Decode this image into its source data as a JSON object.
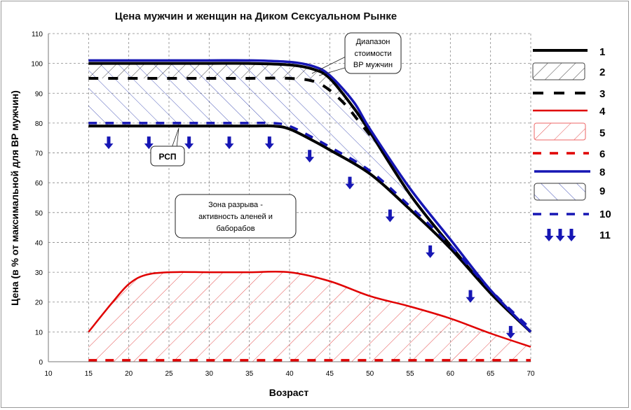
{
  "chart_data": {
    "type": "line",
    "title": "Цена мужчин и женщин на Диком Сексуальном  Рынке",
    "xlabel": "Возраст",
    "ylabel": "Цена (в % от максимальной для ВР мужчин)",
    "xlim": [
      10,
      70
    ],
    "ylim": [
      0,
      110
    ],
    "xticks": [
      10,
      15,
      20,
      25,
      30,
      35,
      40,
      45,
      50,
      55,
      60,
      65,
      70
    ],
    "yticks": [
      0,
      10,
      20,
      30,
      40,
      50,
      60,
      70,
      80,
      90,
      100,
      110
    ],
    "grid": true,
    "legend_position": "right",
    "series": [
      {
        "name": "1",
        "style": "solid",
        "color": "#000000",
        "x": [
          15,
          20,
          25,
          30,
          35,
          40,
          43,
          45,
          48,
          50,
          55,
          60,
          65,
          70
        ],
        "y": [
          100,
          100,
          100,
          100,
          100,
          99.5,
          98,
          95,
          85,
          77,
          56,
          39,
          23,
          10
        ]
      },
      {
        "name": "3",
        "style": "dashed",
        "color": "#000000",
        "x": [
          15,
          20,
          25,
          30,
          35,
          40,
          43,
          45,
          47,
          48.5,
          50
        ],
        "y": [
          95,
          95,
          95,
          95,
          95,
          95,
          94,
          91,
          86,
          81,
          76
        ]
      },
      {
        "name": "1",
        "style": "solid",
        "color": "#000000",
        "x": [
          15,
          20,
          25,
          30,
          35,
          38,
          40,
          43,
          45,
          50,
          55,
          60,
          65,
          70
        ],
        "y": [
          79,
          79,
          79,
          79,
          79,
          79,
          78,
          74,
          71,
          63,
          51,
          38,
          23,
          10
        ]
      },
      {
        "name": "10",
        "style": "dashed",
        "color": "#1616b4",
        "x": [
          15,
          20,
          25,
          30,
          35,
          38,
          40,
          43,
          45,
          50,
          55,
          60,
          65,
          70
        ],
        "y": [
          80,
          80,
          80,
          80,
          80,
          80,
          79,
          75,
          72,
          64,
          52,
          39,
          24,
          11
        ]
      },
      {
        "name": "8",
        "style": "solid",
        "color": "#1616b4",
        "x": [
          15,
          20,
          25,
          30,
          35,
          40,
          43,
          45,
          48,
          50,
          55,
          60,
          65,
          70
        ],
        "y": [
          101,
          101,
          101,
          101,
          101,
          100.5,
          99,
          96,
          87,
          78,
          58,
          41,
          24,
          10
        ]
      },
      {
        "name": "4",
        "style": "solid",
        "color": "#e00000",
        "x": [
          15,
          18,
          20,
          22,
          25,
          30,
          35,
          40,
          45,
          50,
          55,
          60,
          65,
          70
        ],
        "y": [
          10,
          20,
          26,
          29,
          30,
          30,
          30,
          30,
          27,
          22,
          18.5,
          14.5,
          9.5,
          5
        ]
      },
      {
        "name": "6",
        "style": "dashed",
        "color": "#e00000",
        "x": [
          15,
          70
        ],
        "y": [
          0.5,
          0.5
        ]
      }
    ],
    "areas": [
      {
        "name": "2",
        "hatch": "black",
        "between": "1 and 3"
      },
      {
        "name": "9",
        "hatch": "blue",
        "between": "1 and lower 1"
      },
      {
        "name": "5",
        "hatch": "red",
        "between": "4 and 0"
      }
    ],
    "arrows": {
      "name": "11",
      "color": "#1616b4",
      "x": [
        17.5,
        22.5,
        27.5,
        32.5,
        37.5,
        42.5,
        47.5,
        52.5,
        57.5,
        62.5,
        67.5
      ],
      "y": [
        75.5,
        75.5,
        75.5,
        75.5,
        75.5,
        71,
        62,
        51,
        39,
        24,
        12
      ]
    },
    "annotations": {
      "range": "Диапазон стоимости ВР мужчин",
      "range_lines": [
        "Диапазон",
        "стоимости",
        "ВР мужчин"
      ],
      "rsp": "РСП",
      "gap_lines": [
        "Зона разрыва -",
        "активность аленей и",
        "баборабов"
      ]
    },
    "legend": [
      "1",
      "2",
      "3",
      "4",
      "5",
      "6",
      "8",
      "9",
      "10",
      "11"
    ]
  }
}
